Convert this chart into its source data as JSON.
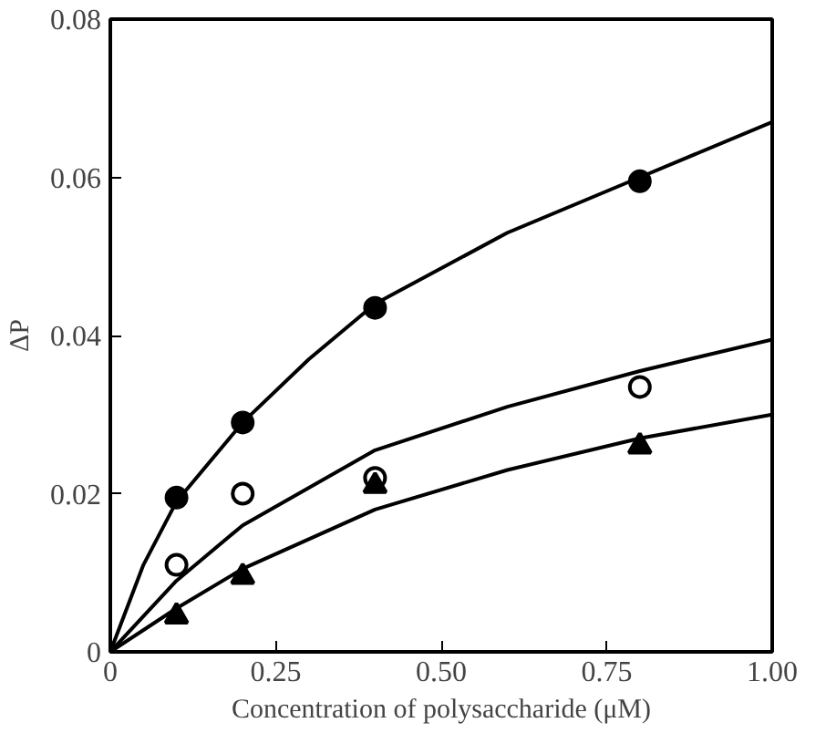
{
  "chart_data": {
    "type": "scatter",
    "xlabel": "Concentration of polysaccharide (μM)",
    "ylabel": "ΔP",
    "xlim": [
      0,
      1.0
    ],
    "ylim": [
      0,
      0.08
    ],
    "xticks": [
      0,
      {
        "value": 0.25,
        "label": "0.25"
      },
      {
        "value": 0.5,
        "label": "0.50"
      },
      {
        "value": 0.75,
        "label": "0.75"
      },
      {
        "value": 1.0,
        "label": "1.00"
      }
    ],
    "yticks": [
      0,
      0.02,
      0.04,
      0.06,
      0.08
    ],
    "grid": false,
    "series": [
      {
        "type": "scatter",
        "marker": "circle",
        "color": "#000000",
        "x": [
          0.1,
          0.2,
          0.4,
          0.8
        ],
        "values": [
          0.0195,
          0.029,
          0.0435,
          0.0595
        ]
      },
      {
        "type": "scatter",
        "marker": "circle",
        "color": "#ffffff",
        "x": [
          0.1,
          0.2,
          0.4,
          0.8
        ],
        "values": [
          0.011,
          0.02,
          0.022,
          0.0335
        ]
      },
      {
        "type": "scatter",
        "marker": "triangle",
        "color": "#000000",
        "x": [
          0.1,
          0.2,
          0.4,
          0.8
        ],
        "values": [
          0.0045,
          0.0095,
          0.021,
          0.026
        ]
      },
      {
        "type": "line",
        "marker": "none",
        "color": "#000000",
        "x": [
          0,
          0.05,
          0.1,
          0.2,
          0.3,
          0.4,
          0.6,
          0.8,
          1.0
        ],
        "values": [
          0,
          0.011,
          0.019,
          0.029,
          0.037,
          0.044,
          0.053,
          0.06,
          0.067
        ]
      },
      {
        "type": "line",
        "marker": "none",
        "color": "#000000",
        "x": [
          0,
          0.1,
          0.2,
          0.4,
          0.6,
          0.8,
          1.0
        ],
        "values": [
          0,
          0.009,
          0.016,
          0.0255,
          0.031,
          0.0355,
          0.0395
        ]
      },
      {
        "type": "line",
        "marker": "none",
        "color": "#000000",
        "x": [
          0,
          0.1,
          0.2,
          0.4,
          0.6,
          0.8,
          1.0
        ],
        "values": [
          0,
          0.0055,
          0.0105,
          0.018,
          0.023,
          0.027,
          0.03
        ]
      }
    ]
  }
}
